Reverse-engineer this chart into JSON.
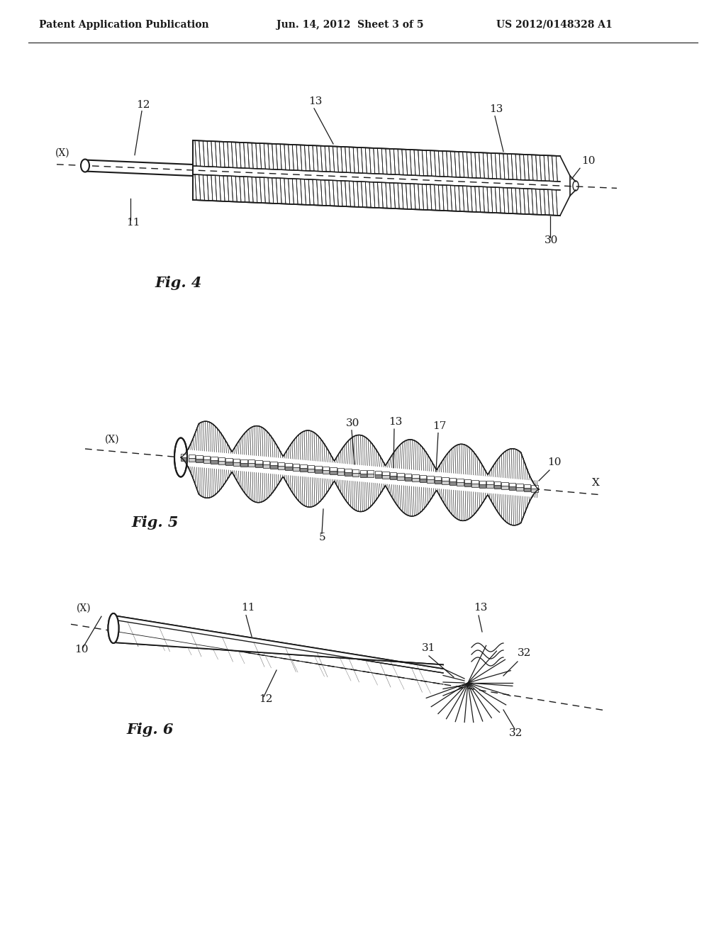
{
  "background_color": "#ffffff",
  "header_left": "Patent Application Publication",
  "header_center": "Jun. 14, 2012  Sheet 3 of 5",
  "header_right": "US 2012/0148328 A1",
  "fig4_label": "Fig. 4",
  "fig5_label": "Fig. 5",
  "fig6_label": "Fig. 6",
  "text_color": "#1a1a1a",
  "line_color": "#1a1a1a"
}
